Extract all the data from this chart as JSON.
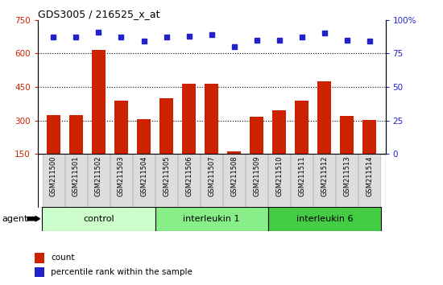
{
  "title": "GDS3005 / 216525_x_at",
  "samples": [
    "GSM211500",
    "GSM211501",
    "GSM211502",
    "GSM211503",
    "GSM211504",
    "GSM211505",
    "GSM211506",
    "GSM211507",
    "GSM211508",
    "GSM211509",
    "GSM211510",
    "GSM211511",
    "GSM211512",
    "GSM211513",
    "GSM211514"
  ],
  "counts": [
    325,
    325,
    615,
    390,
    305,
    400,
    465,
    465,
    160,
    315,
    345,
    390,
    475,
    320,
    302
  ],
  "percentiles": [
    87,
    87,
    91,
    87,
    84,
    87,
    88,
    89,
    80,
    85,
    85,
    87,
    90,
    85,
    84
  ],
  "groups": [
    {
      "label": "control",
      "start": 0,
      "end": 5,
      "color": "#ccffcc"
    },
    {
      "label": "interleukin 1",
      "start": 5,
      "end": 10,
      "color": "#88ee88"
    },
    {
      "label": "interleukin 6",
      "start": 10,
      "end": 15,
      "color": "#44cc44"
    }
  ],
  "ylim_left": [
    150,
    750
  ],
  "ylim_right": [
    0,
    100
  ],
  "yticks_left": [
    150,
    300,
    450,
    600,
    750
  ],
  "yticks_right": [
    0,
    25,
    50,
    75,
    100
  ],
  "bar_color": "#cc2200",
  "dot_color": "#2222cc",
  "plot_bg_color": "#ffffff",
  "gridline_color": "#000000",
  "ylabel_left_color": "#cc2200",
  "ylabel_right_color": "#2222cc",
  "sample_bg": "#dddddd",
  "agent_label": "agent",
  "legend_count": "count",
  "legend_percentile": "percentile rank within the sample"
}
